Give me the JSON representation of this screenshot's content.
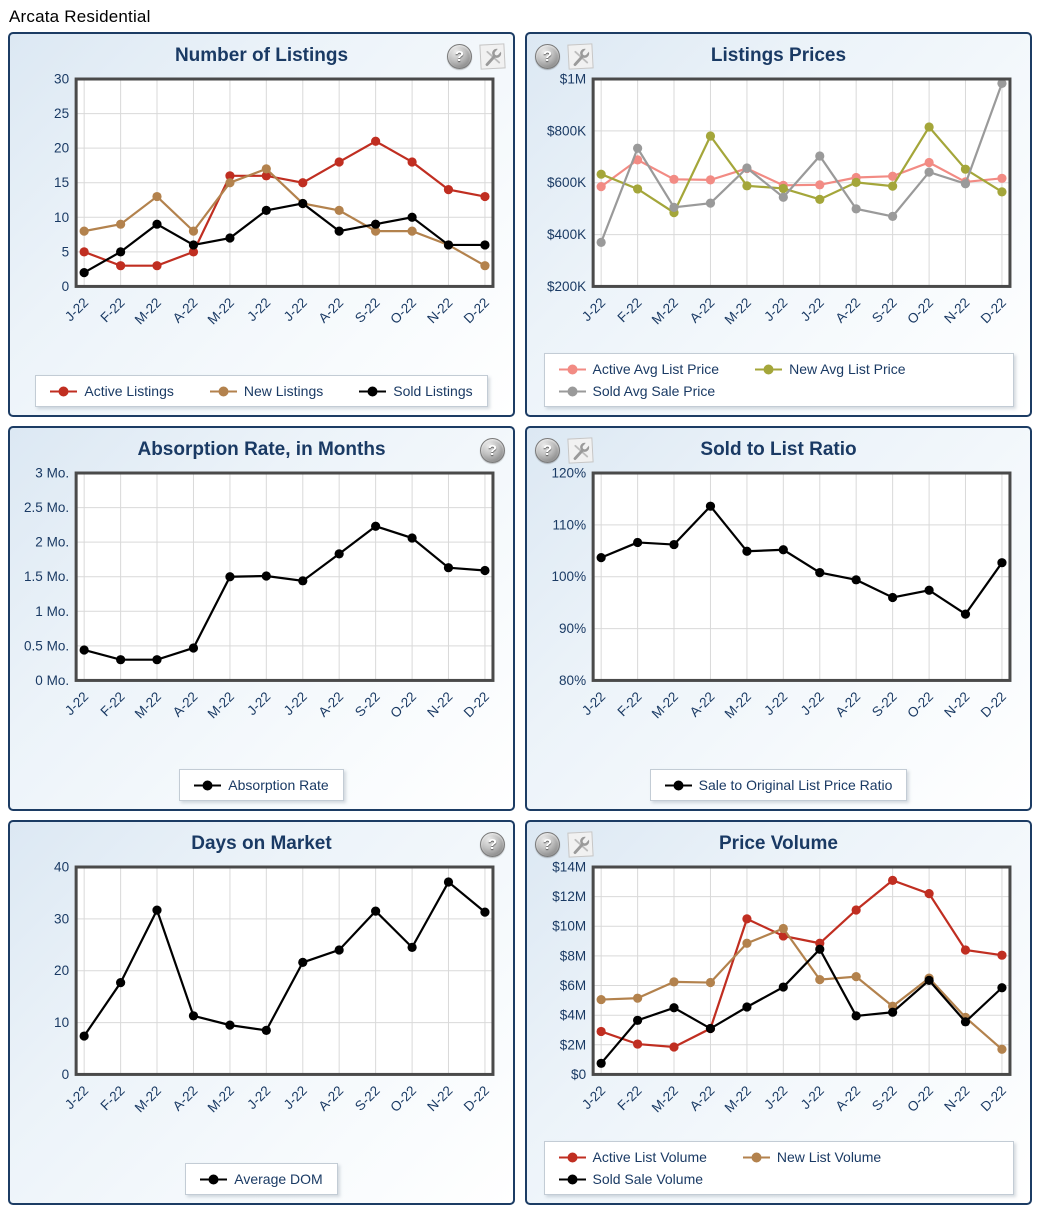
{
  "header": {
    "title": "Arcata Residential"
  },
  "colors": {
    "panel_border": "#1C3C64",
    "title_text": "#1A3A64",
    "grid_line": "#D9D9D9",
    "plot_border": "#4A4A4A",
    "active_red": "#C02E21",
    "new_tan": "#B3824D",
    "sold_black": "#000000",
    "active_pink": "#F28B84",
    "new_olive": "#A4A63A",
    "sold_gray": "#9A9A9A"
  },
  "chart_data": [
    {
      "type": "line",
      "title": "Number of Listings",
      "icons": [
        "help-icon",
        "customize-icon"
      ],
      "icons_side": "right",
      "legend_position": "bottom",
      "grid": true,
      "categories": [
        "J-22",
        "F-22",
        "M-22",
        "A-22",
        "M-22",
        "J-22",
        "J-22",
        "A-22",
        "S-22",
        "O-22",
        "N-22",
        "D-22"
      ],
      "ylim": [
        0,
        30
      ],
      "y_ticks": [
        {
          "v": 0,
          "label": "0"
        },
        {
          "v": 5,
          "label": "5"
        },
        {
          "v": 10,
          "label": "10"
        },
        {
          "v": 15,
          "label": "15"
        },
        {
          "v": 20,
          "label": "20"
        },
        {
          "v": 25,
          "label": "25"
        },
        {
          "v": 30,
          "label": "30"
        }
      ],
      "series": [
        {
          "name": "Active Listings",
          "color": "#C02E21",
          "values": [
            5,
            3,
            3,
            5,
            16,
            16,
            15,
            18,
            21,
            18,
            14,
            13
          ]
        },
        {
          "name": "New Listings",
          "color": "#B3824D",
          "values": [
            8,
            9,
            13,
            8,
            15,
            17,
            12,
            11,
            8,
            8,
            6,
            3
          ]
        },
        {
          "name": "Sold Listings",
          "color": "#000000",
          "values": [
            2,
            5,
            9,
            6,
            7,
            11,
            12,
            8,
            9,
            10,
            6,
            6
          ]
        }
      ]
    },
    {
      "type": "line",
      "title": "Listings Prices",
      "icons": [
        "help-icon",
        "customize-icon"
      ],
      "icons_side": "left",
      "legend_position": "bottom",
      "grid": true,
      "categories": [
        "J-22",
        "F-22",
        "M-22",
        "A-22",
        "M-22",
        "J-22",
        "J-22",
        "A-22",
        "S-22",
        "O-22",
        "N-22",
        "D-22"
      ],
      "ylim": [
        200000,
        1000000
      ],
      "y_ticks": [
        {
          "v": 200000,
          "label": "$200K"
        },
        {
          "v": 400000,
          "label": "$400K"
        },
        {
          "v": 600000,
          "label": "$600K"
        },
        {
          "v": 800000,
          "label": "$800K"
        },
        {
          "v": 1000000,
          "label": "$1M"
        }
      ],
      "series": [
        {
          "name": "Active Avg List Price",
          "color": "#F28B84",
          "values": [
            585000,
            688000,
            613000,
            611000,
            655000,
            590000,
            592000,
            620000,
            625000,
            678000,
            603000,
            617000
          ]
        },
        {
          "name": "New Avg List Price",
          "color": "#A4A63A",
          "values": [
            633000,
            576000,
            485000,
            780000,
            588000,
            578000,
            536000,
            601000,
            587000,
            815000,
            652000,
            565000
          ]
        },
        {
          "name": "Sold Avg Sale Price",
          "color": "#9A9A9A",
          "values": [
            370000,
            733000,
            505000,
            521000,
            657000,
            544000,
            703000,
            499000,
            470000,
            641000,
            596000,
            983000
          ]
        }
      ]
    },
    {
      "type": "line",
      "title": "Absorption Rate, in Months",
      "icons": [
        "help-icon"
      ],
      "icons_side": "right",
      "legend_position": "bottom",
      "grid": true,
      "categories": [
        "J-22",
        "F-22",
        "M-22",
        "A-22",
        "M-22",
        "J-22",
        "J-22",
        "A-22",
        "S-22",
        "O-22",
        "N-22",
        "D-22"
      ],
      "ylim": [
        0,
        3
      ],
      "y_ticks": [
        {
          "v": 0,
          "label": "0 Mo."
        },
        {
          "v": 0.5,
          "label": "0.5 Mo."
        },
        {
          "v": 1,
          "label": "1 Mo."
        },
        {
          "v": 1.5,
          "label": "1.5 Mo."
        },
        {
          "v": 2,
          "label": "2 Mo."
        },
        {
          "v": 2.5,
          "label": "2.5 Mo."
        },
        {
          "v": 3,
          "label": "3 Mo."
        }
      ],
      "series": [
        {
          "name": "Absorption Rate",
          "color": "#000000",
          "values": [
            0.44,
            0.3,
            0.3,
            0.47,
            1.5,
            1.51,
            1.44,
            1.83,
            2.23,
            2.06,
            1.63,
            1.59
          ]
        }
      ]
    },
    {
      "type": "line",
      "title": "Sold to List Ratio",
      "icons": [
        "help-icon",
        "customize-icon"
      ],
      "icons_side": "left",
      "legend_position": "bottom",
      "grid": true,
      "categories": [
        "J-22",
        "F-22",
        "M-22",
        "A-22",
        "M-22",
        "J-22",
        "J-22",
        "A-22",
        "S-22",
        "O-22",
        "N-22",
        "D-22"
      ],
      "ylim": [
        80,
        120
      ],
      "y_ticks": [
        {
          "v": 80,
          "label": "80%"
        },
        {
          "v": 90,
          "label": "90%"
        },
        {
          "v": 100,
          "label": "100%"
        },
        {
          "v": 110,
          "label": "110%"
        },
        {
          "v": 120,
          "label": "120%"
        }
      ],
      "series": [
        {
          "name": "Sale to Original List Price Ratio",
          "color": "#000000",
          "values": [
            103.7,
            106.6,
            106.2,
            113.6,
            104.9,
            105.2,
            100.8,
            99.4,
            96.0,
            97.4,
            92.8,
            102.7
          ]
        }
      ]
    },
    {
      "type": "line",
      "title": "Days on Market",
      "icons": [
        "help-icon"
      ],
      "icons_side": "right",
      "legend_position": "bottom",
      "grid": true,
      "categories": [
        "J-22",
        "F-22",
        "M-22",
        "A-22",
        "M-22",
        "J-22",
        "J-22",
        "A-22",
        "S-22",
        "O-22",
        "N-22",
        "D-22"
      ],
      "ylim": [
        0,
        40
      ],
      "y_ticks": [
        {
          "v": 0,
          "label": "0"
        },
        {
          "v": 10,
          "label": "10"
        },
        {
          "v": 20,
          "label": "20"
        },
        {
          "v": 30,
          "label": "30"
        },
        {
          "v": 40,
          "label": "40"
        }
      ],
      "series": [
        {
          "name": "Average DOM",
          "color": "#000000",
          "values": [
            7.4,
            17.7,
            31.7,
            11.3,
            9.5,
            8.5,
            21.6,
            24.0,
            31.5,
            24.5,
            37.1,
            31.3
          ]
        }
      ]
    },
    {
      "type": "line",
      "title": "Price Volume",
      "icons": [
        "help-icon",
        "customize-icon"
      ],
      "icons_side": "left",
      "legend_position": "bottom",
      "grid": true,
      "categories": [
        "J-22",
        "F-22",
        "M-22",
        "A-22",
        "M-22",
        "J-22",
        "J-22",
        "A-22",
        "S-22",
        "O-22",
        "N-22",
        "D-22"
      ],
      "ylim": [
        0,
        14
      ],
      "y_ticks": [
        {
          "v": 0,
          "label": "$0"
        },
        {
          "v": 2,
          "label": "$2M"
        },
        {
          "v": 4,
          "label": "$4M"
        },
        {
          "v": 6,
          "label": "$6M"
        },
        {
          "v": 8,
          "label": "$8M"
        },
        {
          "v": 10,
          "label": "$10M"
        },
        {
          "v": 12,
          "label": "$12M"
        },
        {
          "v": 14,
          "label": "$14M"
        }
      ],
      "series": [
        {
          "name": "Active List Volume",
          "color": "#C02E21",
          "values": [
            2.9,
            2.05,
            1.85,
            3.1,
            10.5,
            9.35,
            8.85,
            11.1,
            13.1,
            12.2,
            8.4,
            8.05
          ]
        },
        {
          "name": "New List Volume",
          "color": "#B3824D",
          "values": [
            5.05,
            5.15,
            6.25,
            6.2,
            8.85,
            9.85,
            6.4,
            6.6,
            4.6,
            6.5,
            3.85,
            1.7
          ]
        },
        {
          "name": "Sold Sale Volume",
          "color": "#000000",
          "values": [
            0.75,
            3.65,
            4.5,
            3.1,
            4.55,
            5.9,
            8.45,
            3.95,
            4.2,
            6.35,
            3.55,
            5.85
          ]
        }
      ]
    }
  ]
}
